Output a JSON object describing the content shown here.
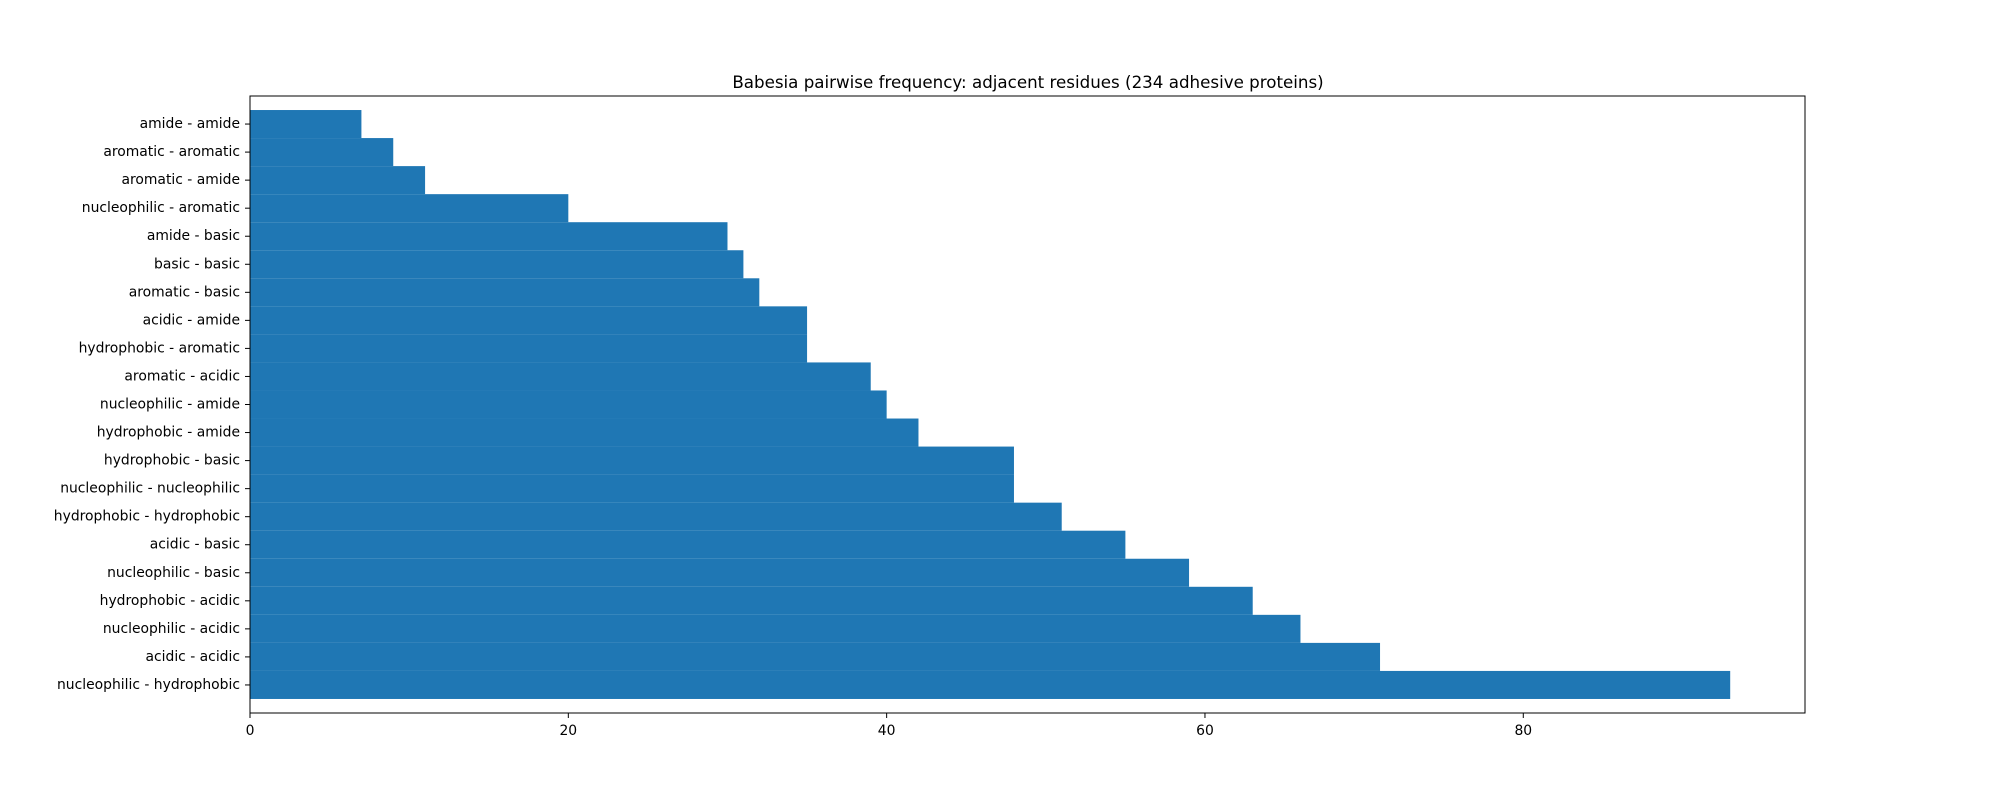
{
  "chart_data": {
    "type": "bar",
    "orientation": "horizontal",
    "title": "Babesia pairwise frequency: adjacent residues (234 adhesive proteins)",
    "xlabel": "",
    "ylabel": "",
    "categories": [
      "nucleophilic - hydrophobic",
      "acidic - acidic",
      "nucleophilic - acidic",
      "hydrophobic - acidic",
      "nucleophilic - basic",
      "acidic - basic",
      "hydrophobic - hydrophobic",
      "nucleophilic - nucleophilic",
      "hydrophobic - basic",
      "hydrophobic - amide",
      "nucleophilic - amide",
      "aromatic - acidic",
      "hydrophobic - aromatic",
      "acidic - amide",
      "aromatic - basic",
      "basic - basic",
      "amide - basic",
      "nucleophilic - aromatic",
      "aromatic - amide",
      "aromatic - aromatic",
      "amide - amide"
    ],
    "values": [
      93,
      71,
      66,
      63,
      59,
      55,
      51,
      48,
      48,
      42,
      40,
      39,
      35,
      35,
      32,
      31,
      30,
      20,
      11,
      9,
      7
    ],
    "xlim": [
      0,
      97.7
    ],
    "xticks": [
      0,
      20,
      40,
      60,
      80
    ],
    "grid": false,
    "legend": "none",
    "bar_color": "#1f77b4"
  }
}
